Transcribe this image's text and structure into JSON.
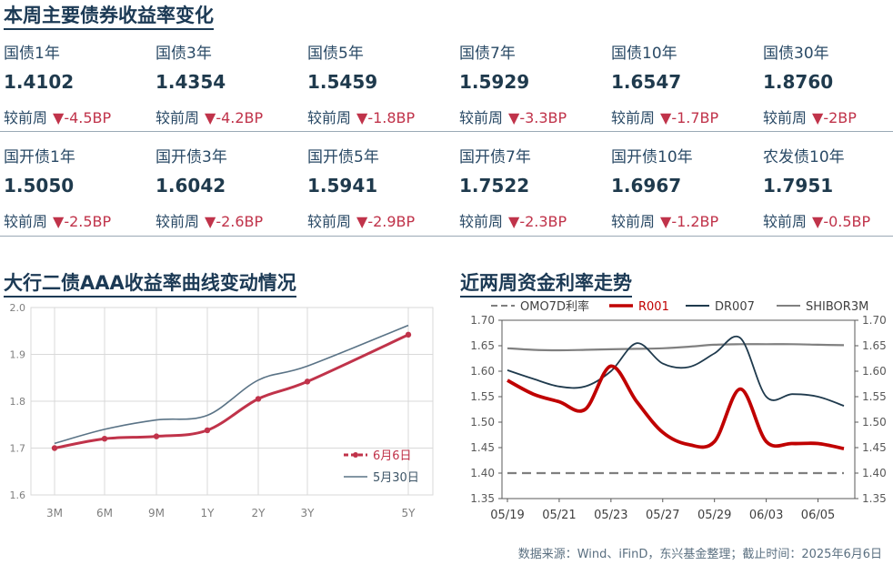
{
  "header": {
    "title": "本周主要债券收益率变化"
  },
  "change_label": "较前周",
  "rows": [
    [
      {
        "name": "国债1年",
        "value": "1.4102",
        "change": "-4.5BP"
      },
      {
        "name": "国债3年",
        "value": "1.4354",
        "change": "-4.2BP"
      },
      {
        "name": "国债5年",
        "value": "1.5459",
        "change": "-1.8BP"
      },
      {
        "name": "国债7年",
        "value": "1.5929",
        "change": "-3.3BP"
      },
      {
        "name": "国债10年",
        "value": "1.6547",
        "change": "-1.7BP"
      },
      {
        "name": "国债30年",
        "value": "1.8760",
        "change": "-2BP"
      }
    ],
    [
      {
        "name": "国开债1年",
        "value": "1.5050",
        "change": "-2.5BP"
      },
      {
        "name": "国开债3年",
        "value": "1.6042",
        "change": "-2.6BP"
      },
      {
        "name": "国开债5年",
        "value": "1.5941",
        "change": "-2.9BP"
      },
      {
        "name": "国开债7年",
        "value": "1.7522",
        "change": "-2.3BP"
      },
      {
        "name": "国开债10年",
        "value": "1.6967",
        "change": "-1.2BP"
      },
      {
        "name": "农发债10年",
        "value": "1.7951",
        "change": "-0.5BP"
      }
    ]
  ],
  "colors": {
    "red": "#c0334a",
    "navy": "#1c3a55",
    "grey": "#7f7f7f",
    "line2": "#5a7386"
  },
  "chart_data": [
    {
      "type": "line",
      "title": "大行二债AAA收益率曲线变动情况",
      "categories": [
        "3M",
        "6M",
        "9M",
        "1Y",
        "2Y",
        "3Y",
        "5Y"
      ],
      "x": [
        0.25,
        0.5,
        0.75,
        1,
        2,
        3,
        5
      ],
      "ylim": [
        1.6,
        2.0
      ],
      "yticks": [
        "1.6",
        "1.7",
        "1.8",
        "1.9",
        "2.0"
      ],
      "legend": "bottom-right",
      "grid": true,
      "series": [
        {
          "name": "6月6日",
          "values": [
            1.7,
            1.72,
            1.725,
            1.738,
            1.805,
            1.842,
            1.942
          ]
        },
        {
          "name": "5月30日",
          "values": [
            1.71,
            1.74,
            1.76,
            1.77,
            1.845,
            1.875,
            1.962
          ]
        }
      ]
    },
    {
      "type": "line",
      "title": "近两周资金利率走势",
      "x": [
        "05/19",
        "05/20",
        "05/21",
        "05/22",
        "05/23",
        "05/26",
        "05/27",
        "05/28",
        "05/29",
        "05/30",
        "06/03",
        "06/04",
        "06/05",
        "06/06"
      ],
      "xticks": [
        "05/19",
        "05/21",
        "05/23",
        "05/27",
        "05/29",
        "06/03",
        "06/05"
      ],
      "ylim": [
        1.35,
        1.7
      ],
      "yticks": [
        "1.35",
        "1.40",
        "1.45",
        "1.50",
        "1.55",
        "1.60",
        "1.65",
        "1.70"
      ],
      "legend": "top",
      "grid": false,
      "series": [
        {
          "name": "OMO7D利率",
          "values": [
            1.4,
            1.4,
            1.4,
            1.4,
            1.4,
            1.4,
            1.4,
            1.4,
            1.4,
            1.4,
            1.4,
            1.4,
            1.4,
            1.4
          ]
        },
        {
          "name": "R001",
          "values": [
            1.582,
            1.555,
            1.54,
            1.525,
            1.61,
            1.54,
            1.48,
            1.456,
            1.462,
            1.565,
            1.462,
            1.458,
            1.458,
            1.448
          ]
        },
        {
          "name": "DR007",
          "values": [
            1.602,
            1.585,
            1.57,
            1.57,
            1.6,
            1.655,
            1.615,
            1.608,
            1.635,
            1.665,
            1.55,
            1.555,
            1.55,
            1.532
          ]
        },
        {
          "name": "SHIBOR3M",
          "values": [
            1.645,
            1.642,
            1.641,
            1.642,
            1.643,
            1.644,
            1.645,
            1.648,
            1.652,
            1.653,
            1.653,
            1.653,
            1.652,
            1.651
          ]
        }
      ]
    }
  ],
  "source_note": "数据来源：Wind、iFinD，东兴基金整理；截止时间：2025年6月6日"
}
